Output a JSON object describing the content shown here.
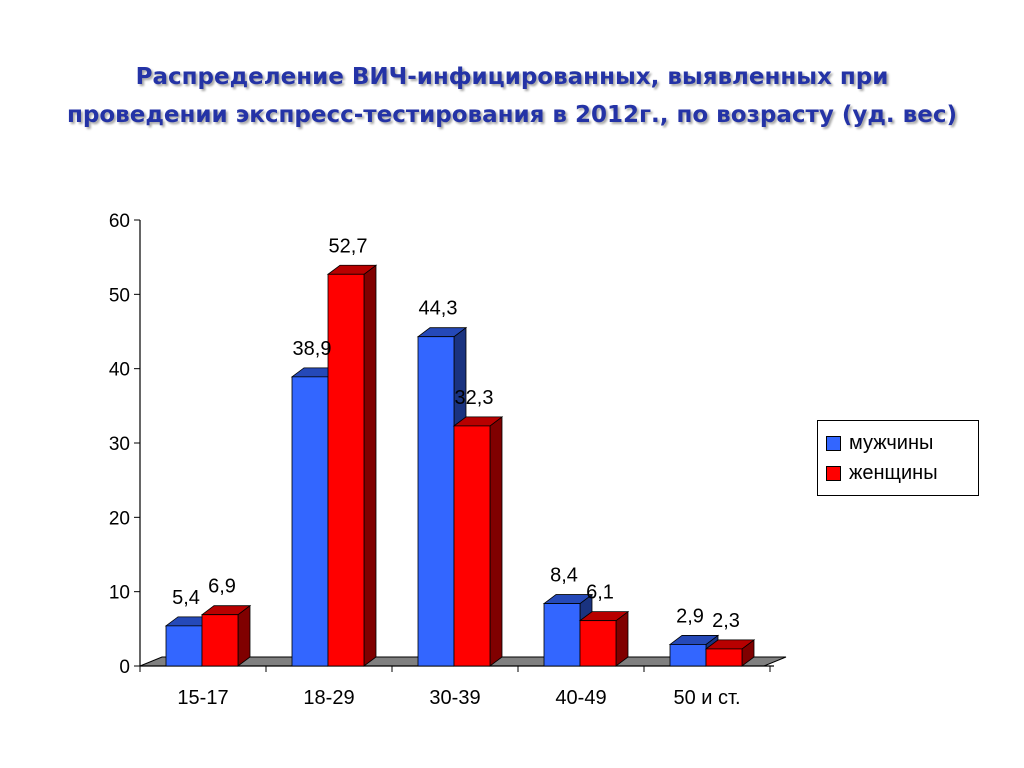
{
  "title": {
    "line1": "Распределение  ВИЧ-инфицированных, выявленных при",
    "line2": "проведении экспресс-тестирования в 2012г., по возрасту (уд. вес)"
  },
  "colors": {
    "title": "#2433a6",
    "men": "#3366ff",
    "women": "#ff0000",
    "floor": "#808080"
  },
  "chart_data": {
    "type": "bar",
    "categories": [
      "15-17",
      "18-29",
      "30-39",
      "40-49",
      "50 и ст."
    ],
    "series": [
      {
        "name": "мужчины",
        "values": [
          5.4,
          38.9,
          44.3,
          8.4,
          2.9
        ],
        "labels": [
          "5,4",
          "38,9",
          "44,3",
          "8,4",
          "2,9"
        ]
      },
      {
        "name": "женщины",
        "values": [
          6.9,
          52.7,
          32.3,
          6.1,
          2.3
        ],
        "labels": [
          "6,9",
          "52,7",
          "32,3",
          "6,1",
          "2,3"
        ]
      }
    ],
    "y_ticks": [
      "0",
      "10",
      "20",
      "30",
      "40",
      "50",
      "60"
    ],
    "ylim": [
      0,
      60
    ],
    "grid": false,
    "legend_position": "right",
    "style": "3d-clustered-column"
  }
}
